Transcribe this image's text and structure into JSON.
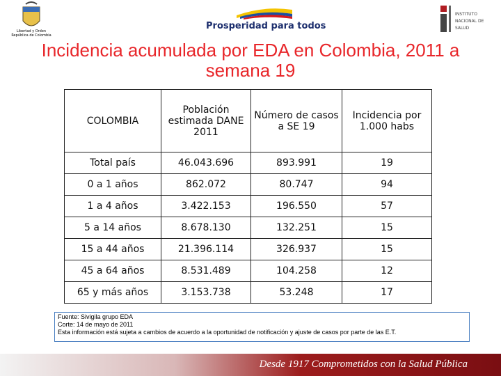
{
  "header": {
    "left_logo": [
      "Libertad y Orden",
      "República de Colombia"
    ],
    "center_logo": "Prosperidad para todos",
    "right_logo": [
      "INSTITUTO",
      "NACIONAL DE",
      "SALUD"
    ]
  },
  "title": "Incidencia acumulada por EDA en Colombia, 2011 a semana 19",
  "table": {
    "header": [
      "COLOMBIA",
      "Población estimada DANE 2011",
      "Número de casos a SE 19",
      "Incidencia por 1.000 habs"
    ],
    "rows": [
      [
        "Total país",
        "46.043.696",
        "893.991",
        "19"
      ],
      [
        "0 a 1 años",
        "862.072",
        "80.747",
        "94"
      ],
      [
        "1 a 4 años",
        "3.422.153",
        "196.550",
        "57"
      ],
      [
        "5 a 14 años",
        "8.678.130",
        "132.251",
        "15"
      ],
      [
        "15 a 44 años",
        "21.396.114",
        "326.937",
        "15"
      ],
      [
        "45 a 64 años",
        "8.531.489",
        "104.258",
        "12"
      ],
      [
        "65 y más años",
        "3.153.738",
        "53.248",
        "17"
      ]
    ]
  },
  "footnote": [
    "Fuente: Sivigila grupo EDA",
    "Corte: 14 de mayo de 2011",
    "Esta información está sujeta a cambios de acuerdo a la oportunidad de notificación y ajuste de casos por parte de las E.T."
  ],
  "footer": "Desde 1917 Comprometidos con la Salud Pública"
}
